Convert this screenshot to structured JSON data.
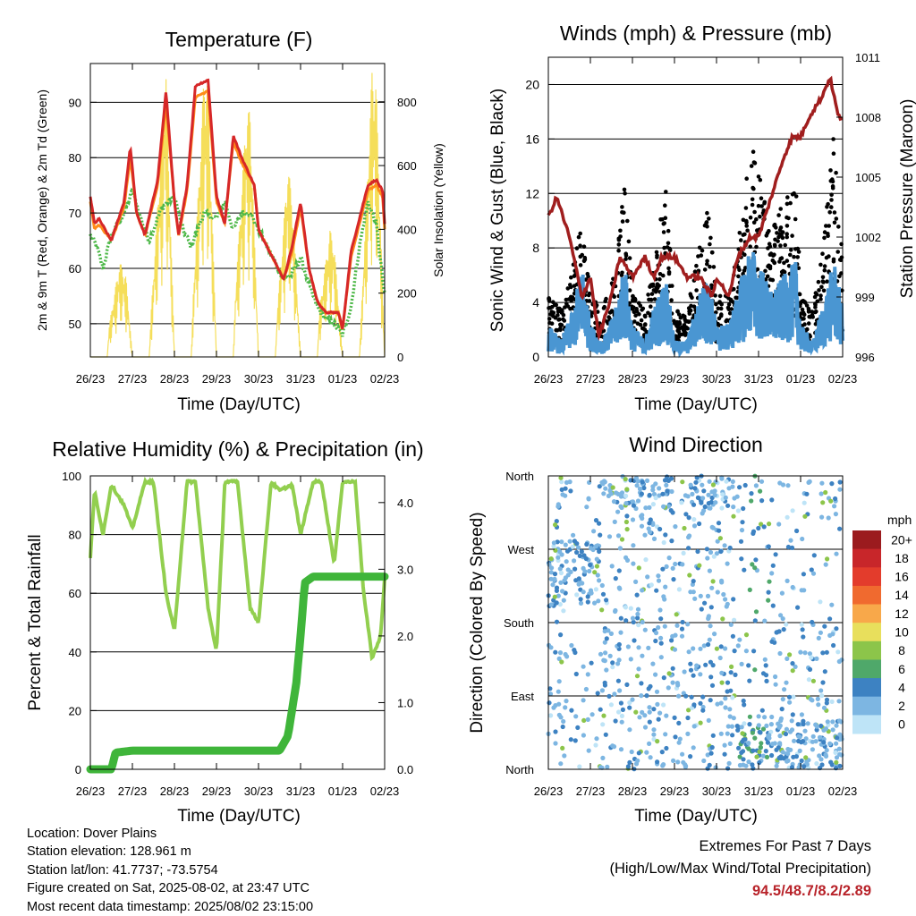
{
  "x_ticks": [
    "26/23",
    "27/23",
    "28/23",
    "29/23",
    "30/23",
    "31/23",
    "01/23",
    "02/23"
  ],
  "x_axis_label": "Time (Day/UTC)",
  "colors": {
    "temp_2m": "#d62728",
    "temp_9m": "#ff8c1a",
    "dewpoint": "#4db848",
    "solar": "#f5de5a",
    "wind": "#4a96d2",
    "gust": "#000000",
    "pressure": "#a01e1e",
    "rh": "#92cf4f",
    "precip": "#3fb53a"
  },
  "panels": {
    "temperature": {
      "title": "Temperature (F)",
      "ylabel_left": "2m & 9m T (Red, Orange) & 2m Td (Green)",
      "ylabel_right": "Solar Insolation (Yellow)",
      "left_ticks": [
        "50",
        "60",
        "70",
        "80",
        "90"
      ],
      "right_ticks": [
        "0",
        "200",
        "400",
        "600",
        "800"
      ]
    },
    "winds": {
      "title": "Winds (mph) & Pressure (mb)",
      "ylabel_left": "Sonic Wind & Gust (Blue, Black)",
      "ylabel_right": "Station Pressure (Maroon)",
      "left_ticks": [
        "0",
        "4",
        "8",
        "12",
        "16",
        "20"
      ],
      "right_ticks": [
        "996",
        "999",
        "1002",
        "1005",
        "1008",
        "1011"
      ]
    },
    "humidity": {
      "title": "Relative Humidity (%) & Precipitation (in)",
      "ylabel_left": "Percent & Total Rainfall",
      "left_ticks": [
        "0",
        "20",
        "40",
        "60",
        "80",
        "100"
      ],
      "right_ticks": [
        "0.0",
        "1.0",
        "2.0",
        "3.0",
        "4.0"
      ]
    },
    "direction": {
      "title": "Wind Direction",
      "ylabel_left": "Direction (Colored By Speed)",
      "left_ticks": [
        "North",
        "East",
        "South",
        "West",
        "North"
      ],
      "colorbar_title": "mph",
      "colorbar_labels": [
        "20+",
        "18",
        "16",
        "14",
        "12",
        "10",
        "8",
        "6",
        "4",
        "2",
        "0"
      ],
      "colorbar_colors": [
        "#9b1b1e",
        "#c8262a",
        "#e33c2c",
        "#f06a2f",
        "#f8a84a",
        "#e8df5c",
        "#8cc54a",
        "#4fa86a",
        "#3d82c2",
        "#7db6e2",
        "#bee4f7"
      ]
    }
  },
  "info": {
    "location": "Location: Dover Plains",
    "elevation": "Station elevation: 128.961 m",
    "latlon": "Station lat/lon: 41.7737; -73.5754",
    "created": "Figure created on Sat, 2025-08-02, at 23:47 UTC",
    "recent": "Most recent data timestamp: 2025/08/02 23:15:00"
  },
  "extremes": {
    "line1": "Extremes For Past 7 Days",
    "line2": "(High/Low/Max Wind/Total Precipitation)",
    "values": "94.5/48.7/8.2/2.89"
  },
  "chart_data": [
    {
      "type": "line",
      "title": "Temperature (F)",
      "x_unit": "days from 26/23 UTC",
      "ylim": [
        44,
        97
      ],
      "y2lim": [
        0,
        920
      ],
      "series": [
        {
          "name": "2m T",
          "axis": "left",
          "x": [
            0,
            0.1,
            0.2,
            0.5,
            0.8,
            0.95,
            1.1,
            1.3,
            1.6,
            1.8,
            2.0,
            2.1,
            2.3,
            2.5,
            2.8,
            3.0,
            3.2,
            3.4,
            3.6,
            3.9,
            4.0,
            4.2,
            4.4,
            4.6,
            4.8,
            5.0,
            5.2,
            5.4,
            5.6,
            5.9,
            6.0,
            6.2,
            6.4,
            6.6,
            6.8,
            6.95,
            7.0
          ],
          "y": [
            73,
            68,
            69,
            65,
            72,
            82,
            70,
            66,
            76,
            92,
            72,
            66,
            75,
            93,
            94,
            73,
            68,
            84,
            80,
            75,
            67,
            64,
            61,
            58,
            64,
            72,
            60,
            54,
            52,
            52,
            49,
            63,
            69,
            75,
            76,
            74,
            68
          ]
        },
        {
          "name": "9m T",
          "axis": "left",
          "x": [
            0,
            0.1,
            0.2,
            0.5,
            0.8,
            0.95,
            1.1,
            1.3,
            1.6,
            1.8,
            2.0,
            2.1,
            2.3,
            2.5,
            2.8,
            3.0,
            3.2,
            3.4,
            3.6,
            3.9,
            4.0,
            4.2,
            4.4,
            4.6,
            4.8,
            5.0,
            5.2,
            5.4,
            5.6,
            5.9,
            6.0,
            6.2,
            6.4,
            6.6,
            6.8,
            6.95,
            7.0
          ],
          "y": [
            72,
            67,
            68,
            65,
            71,
            80,
            70,
            66,
            75,
            90,
            72,
            66,
            74,
            91,
            92,
            72,
            68,
            83,
            79,
            75,
            67,
            64,
            61,
            58,
            63,
            71,
            60,
            54,
            52,
            52,
            49,
            62,
            68,
            74,
            75,
            73,
            67
          ]
        },
        {
          "name": "2m Td",
          "axis": "left",
          "x": [
            0,
            0.15,
            0.3,
            0.5,
            0.8,
            1.0,
            1.2,
            1.4,
            1.7,
            2.0,
            2.2,
            2.4,
            2.7,
            3.0,
            3.2,
            3.4,
            3.6,
            3.8,
            4.0,
            4.2,
            4.4,
            4.6,
            4.8,
            5.0,
            5.2,
            5.4,
            5.6,
            5.8,
            6.0,
            6.2,
            6.4,
            6.6,
            6.8,
            7.0
          ],
          "y": [
            66,
            64,
            60,
            66,
            70,
            74,
            69,
            65,
            71,
            73,
            67,
            64,
            70,
            69,
            72,
            67,
            70,
            70,
            67,
            64,
            61,
            58,
            59,
            62,
            57,
            53,
            51,
            50,
            48,
            53,
            64,
            72,
            68,
            55
          ]
        },
        {
          "name": "Solar Insolation",
          "axis": "right",
          "x": [
            0,
            0.4,
            0.45,
            0.7,
            0.85,
            1.0,
            1.4,
            1.45,
            1.7,
            1.8,
            2.0,
            2.4,
            2.45,
            2.7,
            2.8,
            3.0,
            3.4,
            3.45,
            3.7,
            3.8,
            4.0,
            4.4,
            4.45,
            4.7,
            4.8,
            5.0,
            5.4,
            5.45,
            5.7,
            5.8,
            6.0,
            6.4,
            6.45,
            6.7,
            6.8,
            7.0
          ],
          "y": [
            0,
            0,
            100,
            300,
            250,
            0,
            0,
            150,
            700,
            900,
            0,
            0,
            200,
            880,
            860,
            0,
            0,
            200,
            750,
            780,
            0,
            0,
            150,
            600,
            500,
            0,
            0,
            150,
            400,
            350,
            0,
            0,
            150,
            900,
            850,
            0
          ]
        }
      ]
    },
    {
      "type": "line",
      "title": "Winds (mph) & Pressure (mb)",
      "x_unit": "days from 26/23 UTC",
      "ylim": [
        0,
        22
      ],
      "y2lim": [
        996,
        1011
      ],
      "series": [
        {
          "name": "Sonic Wind",
          "axis": "left",
          "x": [
            0,
            0.3,
            0.6,
            0.8,
            1.0,
            1.3,
            1.6,
            1.8,
            2.0,
            2.3,
            2.5,
            2.8,
            3.0,
            3.3,
            3.6,
            3.8,
            4.0,
            4.3,
            4.6,
            4.8,
            5.0,
            5.3,
            5.6,
            5.9,
            6.0,
            6.3,
            6.6,
            6.8,
            7.0
          ],
          "y": [
            2,
            1,
            3,
            6,
            2,
            1,
            3,
            6,
            2,
            1,
            3,
            5,
            1,
            1,
            4,
            5,
            2,
            2,
            5,
            7,
            6,
            4,
            5,
            6,
            2,
            1,
            4,
            6,
            3
          ]
        },
        {
          "name": "Gust",
          "axis": "left",
          "x": [
            0,
            0.3,
            0.6,
            0.8,
            1.0,
            1.3,
            1.6,
            1.8,
            2.0,
            2.3,
            2.5,
            2.8,
            3.0,
            3.3,
            3.6,
            3.8,
            4.0,
            4.3,
            4.6,
            4.8,
            5.0,
            5.3,
            5.6,
            5.9,
            6.0,
            6.3,
            6.6,
            6.8,
            7.0
          ],
          "y": [
            4,
            3,
            6,
            9,
            4,
            3,
            6,
            12,
            4,
            3,
            6,
            11,
            3,
            3,
            7,
            10,
            4,
            4,
            9,
            14,
            12,
            8,
            10,
            11,
            4,
            3,
            9,
            15,
            6
          ]
        },
        {
          "name": "Station Pressure",
          "axis": "right",
          "x": [
            0,
            0.2,
            0.5,
            0.8,
            1.0,
            1.2,
            1.5,
            1.7,
            2.0,
            2.3,
            2.5,
            2.7,
            3.0,
            3.3,
            3.6,
            3.9,
            4.0,
            4.3,
            4.5,
            4.8,
            5.0,
            5.3,
            5.6,
            5.8,
            6.0,
            6.2,
            6.5,
            6.7,
            6.9,
            7.0
          ],
          "y": [
            1003,
            1004,
            1002,
            999,
            1000,
            997,
            999,
            1001,
            1000,
            1001,
            1000,
            1001,
            1001,
            1000,
            1000,
            999,
            1000,
            999,
            1001,
            1002,
            1002,
            1004,
            1006,
            1007,
            1007,
            1008,
            1009,
            1010,
            1008,
            1008
          ]
        }
      ]
    },
    {
      "type": "line",
      "title": "Relative Humidity (%) & Precipitation (in)",
      "x_unit": "days from 26/23 UTC",
      "ylim": [
        0,
        100
      ],
      "y2lim": [
        0,
        4.4
      ],
      "series": [
        {
          "name": "Relative Humidity",
          "axis": "left",
          "x": [
            0,
            0.1,
            0.3,
            0.5,
            0.8,
            1.0,
            1.3,
            1.5,
            1.8,
            2.0,
            2.3,
            2.5,
            2.8,
            3.0,
            3.2,
            3.5,
            3.8,
            4.0,
            4.3,
            4.5,
            4.8,
            5.0,
            5.3,
            5.5,
            5.8,
            6.0,
            6.3,
            6.5,
            6.7,
            6.9,
            7.0
          ],
          "y": [
            72,
            95,
            80,
            97,
            90,
            82,
            98,
            98,
            60,
            47,
            98,
            98,
            55,
            40,
            98,
            98,
            55,
            50,
            98,
            95,
            97,
            80,
            98,
            98,
            70,
            98,
            98,
            60,
            38,
            45,
            65
          ]
        },
        {
          "name": "Precipitation",
          "axis": "right",
          "x": [
            0,
            0.5,
            0.6,
            1.0,
            2.0,
            3.0,
            4.0,
            4.5,
            4.7,
            4.9,
            5.0,
            5.1,
            5.3,
            6.0,
            7.0
          ],
          "y": [
            0,
            0,
            0.25,
            0.28,
            0.28,
            0.28,
            0.28,
            0.28,
            0.5,
            1.3,
            2.0,
            2.8,
            2.89,
            2.89,
            2.89
          ]
        }
      ]
    },
    {
      "type": "scatter",
      "title": "Wind Direction",
      "x_unit": "days from 26/23 UTC",
      "y_unit": "degrees (0 = North at bottom, 360 = North at top)",
      "ylim": [
        0,
        360
      ],
      "note": "points colored by wind speed (mph) per colorbar"
    }
  ]
}
